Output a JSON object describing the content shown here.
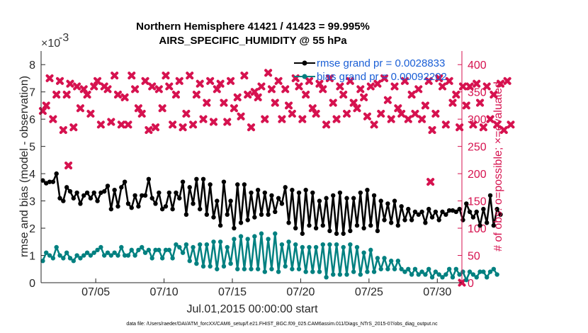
{
  "chart_data": {
    "type": "line",
    "title_line1": "Northern Hemisphere 41421 / 41423 = 99.995%",
    "title_line2": "AIRS_SPECIFIC_HUMIDITY @ 55 hPa",
    "xlabel": "Jul.01,2015 00:00:00 start",
    "ylabel_left": "rmse and bias (model - observation)",
    "ylabel_right": "# of obs: o=possible; ×=evaluated",
    "exponent_label": "×10",
    "exponent_power": "-3",
    "footnote": "data file: /Users/raeder/DAI/ATM_forcXX/CAM6_setup/f.e21.FHIST_BGC.f09_025.CAM6assim.011/Diags_NTrS_2015-07/obs_diag_output.nc",
    "x_range": [
      1,
      31.8
    ],
    "ylim_left": [
      0,
      8.5
    ],
    "ylim_right": [
      0,
      425
    ],
    "xticks": [
      {
        "value": 5,
        "label": "07/05"
      },
      {
        "value": 10,
        "label": "07/10"
      },
      {
        "value": 15,
        "label": "07/15"
      },
      {
        "value": 20,
        "label": "07/20"
      },
      {
        "value": 25,
        "label": "07/25"
      },
      {
        "value": 30,
        "label": "07/30"
      }
    ],
    "yticks_left": [
      {
        "value": 0,
        "label": "0"
      },
      {
        "value": 1,
        "label": "1"
      },
      {
        "value": 2,
        "label": "2"
      },
      {
        "value": 3,
        "label": "3"
      },
      {
        "value": 4,
        "label": "4"
      },
      {
        "value": 5,
        "label": "5"
      },
      {
        "value": 6,
        "label": "6"
      },
      {
        "value": 7,
        "label": "7"
      },
      {
        "value": 8,
        "label": "8"
      }
    ],
    "yticks_right": [
      {
        "value": 0,
        "label": "0"
      },
      {
        "value": 50,
        "label": "50"
      },
      {
        "value": 100,
        "label": "100"
      },
      {
        "value": 150,
        "label": "150"
      },
      {
        "value": 200,
        "label": "200"
      },
      {
        "value": 250,
        "label": "250"
      },
      {
        "value": 300,
        "label": "300"
      },
      {
        "value": 350,
        "label": "350"
      },
      {
        "value": 400,
        "label": "400"
      }
    ],
    "series": [
      {
        "name": "rmse",
        "legend": "rmse grand pr = 0.0028833",
        "color": "#000000",
        "axis": "left",
        "x_start": 1.125,
        "x_step": 0.25,
        "values": [
          3.75,
          3.65,
          3.7,
          3.7,
          4.0,
          3.1,
          3.0,
          3.5,
          3.35,
          3.1,
          3.3,
          2.9,
          3.2,
          3.3,
          3.1,
          3.3,
          3.0,
          3.3,
          3.35,
          3.55,
          2.7,
          3.4,
          2.8,
          3.5,
          3.7,
          2.9,
          2.75,
          3.2,
          2.8,
          3.2,
          3.2,
          3.8,
          3.1,
          2.9,
          3.3,
          2.7,
          2.8,
          3.3,
          2.7,
          3.3,
          3.1,
          3.7,
          2.5,
          3.5,
          2.9,
          3.8,
          2.7,
          3.8,
          2.5,
          3.6,
          2.4,
          3.0,
          2.1,
          3.7,
          2.5,
          3.0,
          2.0,
          3.6,
          2.2,
          3.6,
          2.3,
          3.3,
          2.4,
          3.4,
          2.5,
          3.3,
          2.5,
          3.2,
          2.6,
          3.1,
          2.9,
          3.5,
          2.2,
          3.4,
          2.0,
          3.3,
          1.8,
          3.4,
          2.1,
          3.3,
          2.0,
          3.0,
          2.1,
          3.1,
          1.9,
          3.2,
          1.8,
          3.3,
          1.8,
          3.1,
          1.9,
          3.1,
          2.1,
          3.3,
          2.0,
          3.4,
          2.1,
          3.2,
          1.9,
          3.0,
          2.3,
          2.9,
          2.2,
          3.0,
          2.1,
          2.8,
          2.3,
          2.7,
          2.3,
          2.6,
          2.5,
          2.6,
          2.2,
          2.7,
          2.4,
          2.6,
          2.3,
          2.6,
          2.5,
          2.65,
          2.65,
          2.6,
          2.7,
          2.3,
          2.9,
          2.6,
          2.4,
          2.6,
          2.1,
          2.7,
          2.2,
          3.2,
          2.1,
          2.7,
          2.5
        ]
      },
      {
        "name": "bias",
        "legend": "bias grand pr = 0.00092202",
        "color": "#008080",
        "axis": "left",
        "x_start": 1.125,
        "x_step": 0.25,
        "values": [
          0.8,
          1.1,
          1.0,
          0.9,
          1.3,
          1.0,
          0.9,
          1.1,
          0.9,
          0.8,
          1.0,
          0.9,
          1.0,
          1.1,
          1.0,
          1.1,
          1.2,
          1.3,
          1.0,
          1.1,
          1.0,
          1.1,
          1.0,
          1.3,
          1.0,
          1.0,
          1.2,
          1.0,
          1.2,
          1.3,
          1.1,
          1.2,
          0.9,
          1.2,
          1.2,
          0.9,
          1.2,
          1.2,
          0.9,
          1.4,
          1.3,
          1.1,
          1.4,
          0.8,
          1.3,
          0.7,
          1.4,
          0.6,
          1.4,
          0.6,
          1.5,
          0.5,
          1.5,
          0.6,
          1.3,
          0.7,
          1.6,
          0.5,
          1.7,
          0.5,
          1.6,
          0.5,
          1.7,
          0.5,
          1.8,
          0.4,
          1.6,
          0.5,
          1.8,
          0.4,
          1.4,
          0.6,
          1.5,
          0.5,
          1.4,
          0.5,
          1.3,
          0.4,
          1.3,
          0.4,
          1.3,
          0.4,
          1.4,
          0.2,
          1.4,
          0.3,
          1.4,
          0.3,
          1.3,
          0.3,
          1.4,
          0.4,
          1.3,
          0.3,
          1.1,
          0.4,
          1.2,
          0.4,
          0.9,
          0.5,
          0.9,
          0.5,
          0.8,
          0.5,
          0.8,
          0.5,
          0.4,
          0.5,
          0.3,
          0.5,
          0.3,
          0.4,
          0.3,
          0.5,
          0.2,
          0.4,
          0.3,
          0.2,
          0.3,
          0.5,
          0.2,
          0.5,
          0.3,
          0.4,
          0.1,
          0.4,
          0.3,
          0.2,
          0.4,
          0.4,
          0.2,
          0.4,
          0.5,
          0.3
        ]
      },
      {
        "name": "obs_evaluated",
        "color": "#d6124f",
        "axis": "right",
        "x_start": 1.125,
        "x_step": 0.25,
        "values": [
          315,
          325,
          375,
          300,
          345,
          370,
          280,
          345,
          365,
          285,
          360,
          320,
          355,
          345,
          310,
          360,
          370,
          290,
          360,
          355,
          295,
          380,
          345,
          290,
          340,
          290,
          380,
          355,
          320,
          310,
          370,
          280,
          360,
          285,
          355,
          320,
          380,
          360,
          290,
          345,
          370,
          285,
          310,
          380,
          290,
          345,
          365,
          300,
          330,
          370,
          295,
          355,
          365,
          330,
          295,
          370,
          320,
          340,
          305,
          380,
          345,
          285,
          350,
          340,
          360,
          300,
          385,
          355,
          330,
          370,
          300,
          355,
          325,
          310,
          375,
          360,
          300,
          345,
          370,
          320,
          310,
          365,
          355,
          290,
          375,
          330,
          300,
          360,
          345,
          310,
          370,
          330,
          320,
          355,
          340,
          305,
          360,
          290,
          365,
          310,
          375,
          335,
          300,
          360,
          320,
          310,
          370,
          300,
          345,
          310,
          355,
          300,
          325,
          370,
          280,
          310,
          375,
          360,
          290,
          370,
          330,
          345,
          285,
          360,
          325,
          360,
          290,
          365,
          330,
          285,
          360,
          300,
          345,
          290,
          365,
          280,
          370,
          290
        ]
      },
      {
        "name": "obs_possible",
        "color": "#d6124f",
        "axis": "right",
        "points": [
          [
            3.0,
            215
          ],
          [
            29.5,
            185
          ],
          [
            31.8,
            0
          ]
        ]
      }
    ]
  }
}
